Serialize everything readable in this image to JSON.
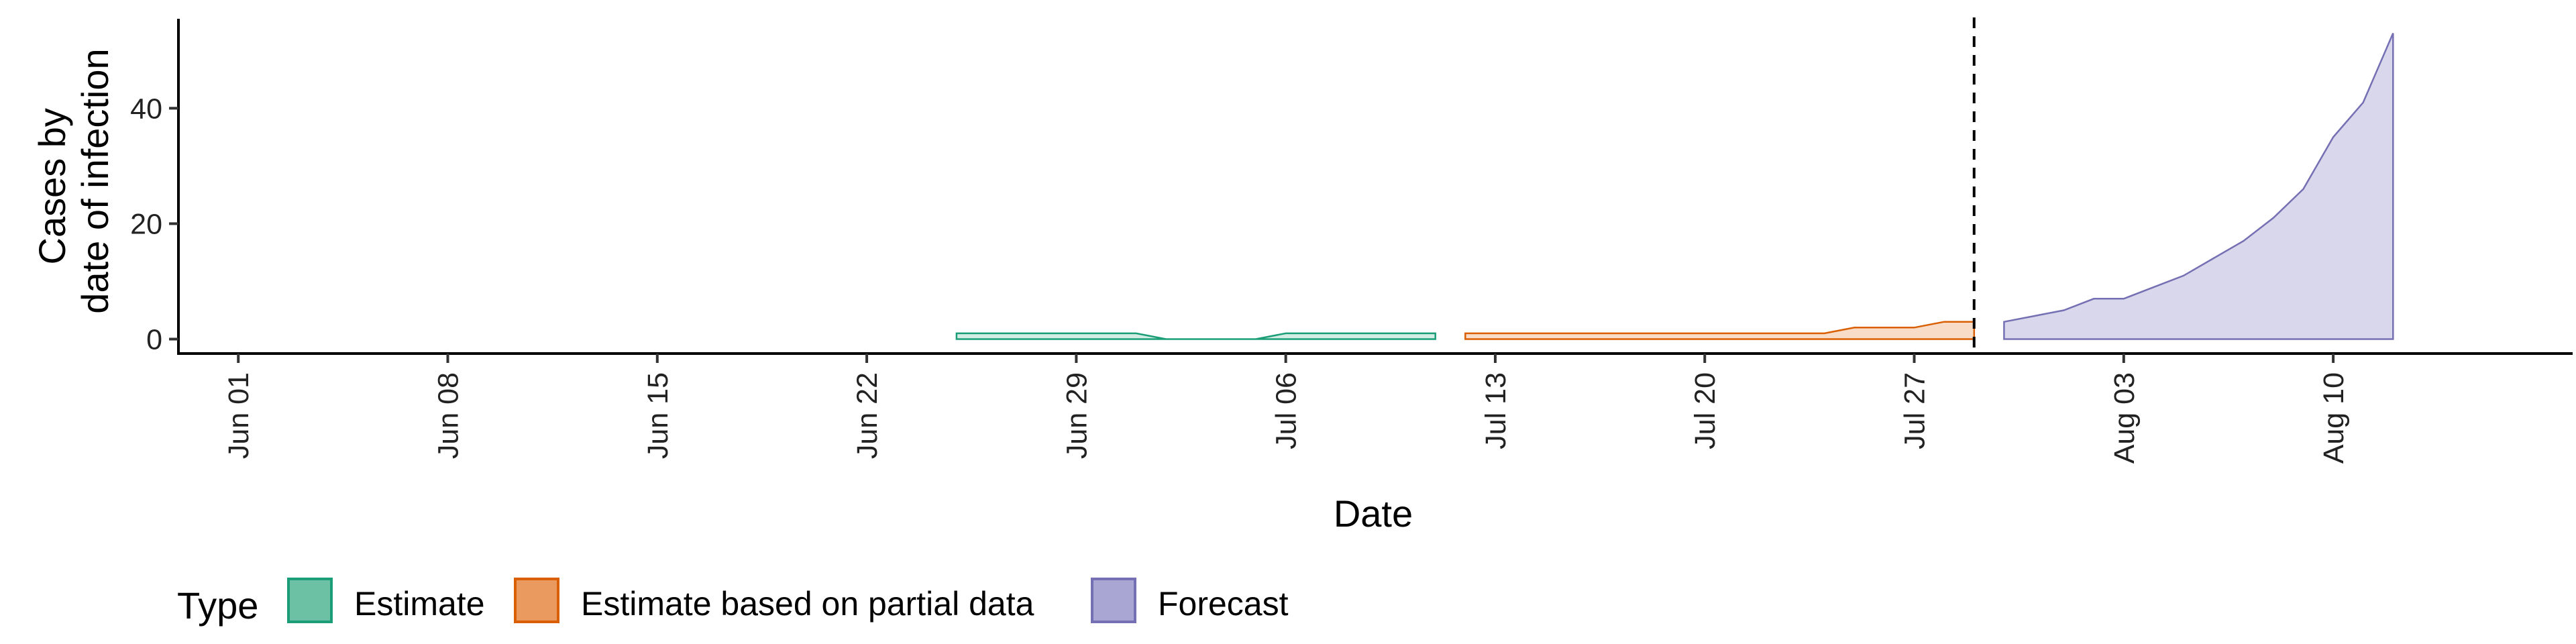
{
  "chart_data": {
    "type": "area",
    "title": "",
    "xlabel": "Date",
    "ylabel_lines": [
      "Cases by",
      "date of infection"
    ],
    "x_ticks": [
      "2020-06-01",
      "2020-06-08",
      "2020-06-15",
      "2020-06-22",
      "2020-06-29",
      "2020-07-06",
      "2020-07-13",
      "2020-07-20",
      "2020-07-27",
      "2020-08-03",
      "2020-08-10"
    ],
    "x_tick_labels": [
      "Jun 01",
      "Jun 08",
      "Jun 15",
      "Jun 22",
      "Jun 29",
      "Jul 06",
      "Jul 13",
      "Jul 20",
      "Jul 27",
      "Aug 03",
      "Aug 10"
    ],
    "xlim": [
      "2020-05-30",
      "2020-08-18"
    ],
    "y_ticks": [
      0,
      20,
      40
    ],
    "ylim": [
      -2.5,
      55.5
    ],
    "grid": false,
    "vline_date": "2020-07-29",
    "legend": {
      "title": "Type",
      "position": "bottom",
      "entries": [
        {
          "label": "Estimate",
          "fill": "#6cc1a4",
          "stroke": "#1b9e77"
        },
        {
          "label": "Estimate based on partial data",
          "fill": "#eb9a5f",
          "stroke": "#d95f02"
        },
        {
          "label": "Forecast",
          "fill": "#a9a6d3",
          "stroke": "#7570b3"
        }
      ]
    },
    "series": [
      {
        "name": "Estimate",
        "fill": "#6cc1a4",
        "stroke": "#1b9e77",
        "fill_opacity": 0.3,
        "x": [
          "2020-06-25",
          "2020-06-26",
          "2020-06-27",
          "2020-06-28",
          "2020-06-29",
          "2020-06-30",
          "2020-07-01",
          "2020-07-02",
          "2020-07-03",
          "2020-07-04",
          "2020-07-05",
          "2020-07-06",
          "2020-07-07",
          "2020-07-08",
          "2020-07-09",
          "2020-07-10",
          "2020-07-11"
        ],
        "lower": [
          0,
          0,
          0,
          0,
          0,
          0,
          0,
          0,
          0,
          0,
          0,
          0,
          0,
          0,
          0,
          0,
          0
        ],
        "upper": [
          1,
          1,
          1,
          1,
          1,
          1,
          1,
          0,
          0,
          0,
          0,
          1,
          1,
          1,
          1,
          1,
          1
        ]
      },
      {
        "name": "Estimate based on partial data",
        "fill": "#eb9a5f",
        "stroke": "#d95f02",
        "fill_opacity": 0.35,
        "x": [
          "2020-07-12",
          "2020-07-13",
          "2020-07-14",
          "2020-07-15",
          "2020-07-16",
          "2020-07-17",
          "2020-07-18",
          "2020-07-19",
          "2020-07-20",
          "2020-07-21",
          "2020-07-22",
          "2020-07-23",
          "2020-07-24",
          "2020-07-25",
          "2020-07-26",
          "2020-07-27",
          "2020-07-28",
          "2020-07-29"
        ],
        "lower": [
          0,
          0,
          0,
          0,
          0,
          0,
          0,
          0,
          0,
          0,
          0,
          0,
          0,
          0,
          0,
          0,
          0,
          0
        ],
        "upper": [
          1,
          1,
          1,
          1,
          1,
          1,
          1,
          1,
          1,
          1,
          1,
          1,
          1,
          2,
          2,
          2,
          3,
          3
        ]
      },
      {
        "name": "Forecast",
        "fill": "#a9a6d3",
        "stroke": "#7570b3",
        "fill_opacity": 0.45,
        "x": [
          "2020-07-30",
          "2020-07-31",
          "2020-08-01",
          "2020-08-02",
          "2020-08-03",
          "2020-08-04",
          "2020-08-05",
          "2020-08-06",
          "2020-08-07",
          "2020-08-08",
          "2020-08-09",
          "2020-08-10",
          "2020-08-11",
          "2020-08-12"
        ],
        "lower": [
          0,
          0,
          0,
          0,
          0,
          0,
          0,
          0,
          0,
          0,
          0,
          0,
          0,
          0
        ],
        "upper": [
          3,
          4,
          5,
          7,
          7,
          9,
          11,
          14,
          17,
          21,
          26,
          35,
          41,
          53
        ]
      }
    ]
  }
}
